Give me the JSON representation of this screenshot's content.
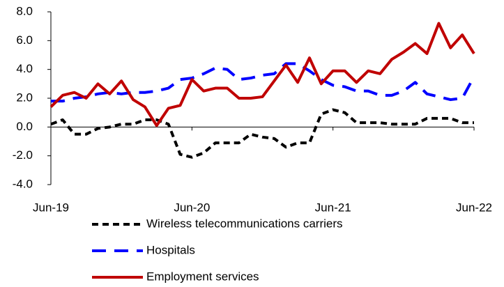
{
  "chart_data": {
    "type": "line",
    "categories": [
      "Jun-19",
      null,
      null,
      null,
      null,
      null,
      null,
      null,
      null,
      null,
      null,
      null,
      "Jun-20",
      null,
      null,
      null,
      null,
      null,
      null,
      null,
      null,
      null,
      null,
      null,
      "Jun-21",
      null,
      null,
      null,
      null,
      null,
      null,
      null,
      null,
      null,
      null,
      null,
      "Jun-22"
    ],
    "series": [
      {
        "name": "Wireless telecommunications carriers",
        "color": "#000000",
        "dash": "9 6",
        "values": [
          0.2,
          0.5,
          -0.5,
          -0.5,
          -0.1,
          0.0,
          0.2,
          0.2,
          0.5,
          0.5,
          0.2,
          -1.9,
          -2.1,
          -1.8,
          -1.1,
          -1.1,
          -1.1,
          -0.5,
          -0.7,
          -0.8,
          -1.4,
          -1.1,
          -1.1,
          0.9,
          1.2,
          1.0,
          0.3,
          0.3,
          0.3,
          0.2,
          0.2,
          0.2,
          0.6,
          0.6,
          0.6,
          0.3,
          0.3
        ]
      },
      {
        "name": "Hospitals",
        "color": "#0000ff",
        "dash": "20 12",
        "values": [
          1.8,
          1.8,
          2.0,
          2.1,
          2.3,
          2.4,
          2.3,
          2.4,
          2.4,
          2.5,
          2.7,
          3.3,
          3.4,
          3.7,
          4.1,
          4.0,
          3.3,
          3.4,
          3.6,
          3.7,
          4.4,
          4.4,
          3.9,
          3.3,
          2.9,
          2.8,
          2.5,
          2.5,
          2.2,
          2.2,
          2.5,
          3.1,
          2.3,
          2.1,
          1.9,
          2.0,
          3.5
        ]
      },
      {
        "name": "Employment services",
        "color": "#c00000",
        "dash": "none",
        "values": [
          1.4,
          2.2,
          2.4,
          2.0,
          3.0,
          2.3,
          3.2,
          1.9,
          1.4,
          0.1,
          1.3,
          1.5,
          3.3,
          2.5,
          2.7,
          2.7,
          2.0,
          2.0,
          2.1,
          3.2,
          4.3,
          3.1,
          4.8,
          3.0,
          3.9,
          3.9,
          3.1,
          3.9,
          3.7,
          4.7,
          5.2,
          5.8,
          5.1,
          7.2,
          5.5,
          6.4,
          5.1
        ]
      }
    ],
    "ylim": [
      -4,
      8
    ],
    "yticks": [
      {
        "value": -4,
        "label": "-4.0"
      },
      {
        "value": -2,
        "label": "-2.0"
      },
      {
        "value": 0,
        "label": "0.0"
      },
      {
        "value": 2,
        "label": "2.0"
      },
      {
        "value": 4,
        "label": "4.0"
      },
      {
        "value": 6,
        "label": "6.0"
      },
      {
        "value": 8,
        "label": "8.0"
      }
    ],
    "grid": false
  }
}
